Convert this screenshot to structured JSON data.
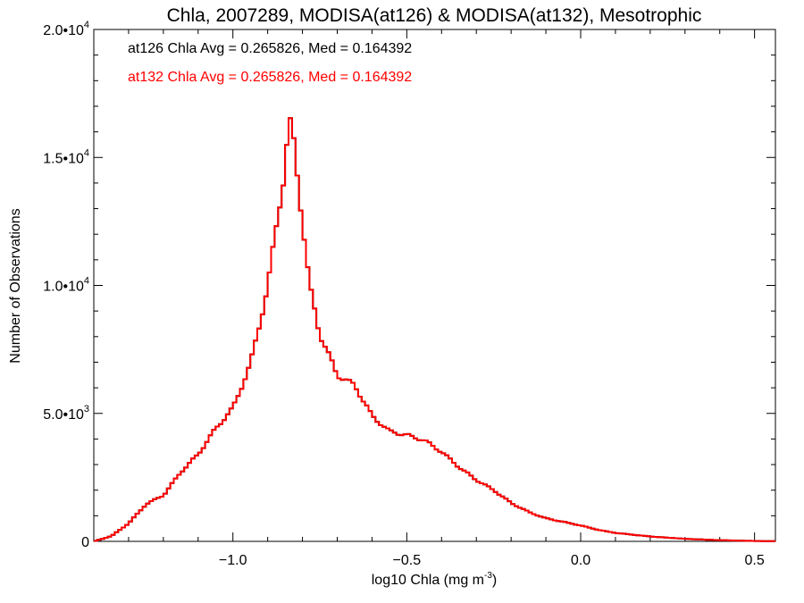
{
  "chart_data": {
    "type": "line",
    "title": "Chla, 2007289, MODISA(at126) & MODISA(at132), Mesotrophic",
    "xlabel": "log10 Chla (mg m",
    "xlabel_sup": "-3",
    "xlabel_end": ")",
    "ylabel": "Number of Observations",
    "xlim": [
      -1.4,
      0.56
    ],
    "ylim": [
      0,
      20000
    ],
    "xticks": [
      -1.0,
      -0.5,
      0.0,
      0.5
    ],
    "xtick_labels": [
      "−1.0",
      "−0.5",
      "0.0",
      "0.5"
    ],
    "yticks": [
      0,
      5000,
      10000,
      15000,
      20000
    ],
    "ytick_labels": [
      {
        "base": "0",
        "sup": ""
      },
      {
        "base": "5.0•10",
        "sup": "3"
      },
      {
        "base": "1.0•10",
        "sup": "4"
      },
      {
        "base": "1.5•10",
        "sup": "4"
      },
      {
        "base": "2.0•10",
        "sup": "4"
      }
    ],
    "grid": false,
    "legend_position": "top-left",
    "annotations": [
      {
        "text": "at126 Chla Avg = 0.265826, Med = 0.164392",
        "color": "#000000"
      },
      {
        "text": "at132 Chla Avg = 0.265826, Med = 0.164392",
        "color": "#ff0000"
      }
    ],
    "series": [
      {
        "name": "at126",
        "color": "#000000",
        "x": [
          -1.4,
          -1.35,
          -1.3,
          -1.25,
          -1.2,
          -1.15,
          -1.1,
          -1.05,
          -1.0,
          -0.95,
          -0.9,
          -0.87,
          -0.85,
          -0.84,
          -0.83,
          -0.82,
          -0.8,
          -0.78,
          -0.75,
          -0.7,
          -0.65,
          -0.6,
          -0.55,
          -0.5,
          -0.45,
          -0.4,
          -0.35,
          -0.3,
          -0.25,
          -0.2,
          -0.15,
          -0.1,
          -0.05,
          0.0,
          0.05,
          0.1,
          0.2,
          0.3,
          0.4,
          0.5,
          0.56
        ],
        "y": [
          0,
          200,
          700,
          1450,
          1800,
          2700,
          3400,
          4400,
          5200,
          6900,
          9900,
          12800,
          14500,
          16400,
          16200,
          15000,
          12500,
          10000,
          8100,
          6500,
          6100,
          4900,
          4300,
          4150,
          3950,
          3500,
          2900,
          2400,
          2000,
          1500,
          1150,
          900,
          760,
          620,
          450,
          330,
          190,
          100,
          45,
          15,
          5
        ]
      },
      {
        "name": "at132",
        "color": "#ff0000",
        "x": [
          -1.4,
          -1.35,
          -1.3,
          -1.25,
          -1.2,
          -1.15,
          -1.1,
          -1.05,
          -1.0,
          -0.95,
          -0.9,
          -0.87,
          -0.85,
          -0.84,
          -0.83,
          -0.82,
          -0.8,
          -0.78,
          -0.75,
          -0.7,
          -0.65,
          -0.6,
          -0.55,
          -0.5,
          -0.45,
          -0.4,
          -0.35,
          -0.3,
          -0.25,
          -0.2,
          -0.15,
          -0.1,
          -0.05,
          0.0,
          0.05,
          0.1,
          0.2,
          0.3,
          0.4,
          0.5,
          0.56
        ],
        "y": [
          0,
          200,
          700,
          1450,
          1800,
          2700,
          3400,
          4400,
          5200,
          6900,
          9900,
          12800,
          14500,
          16400,
          16200,
          15000,
          12500,
          10000,
          8100,
          6500,
          6100,
          4900,
          4300,
          4150,
          3950,
          3500,
          2900,
          2400,
          2000,
          1500,
          1150,
          900,
          760,
          620,
          450,
          330,
          190,
          100,
          45,
          15,
          5
        ]
      }
    ]
  }
}
